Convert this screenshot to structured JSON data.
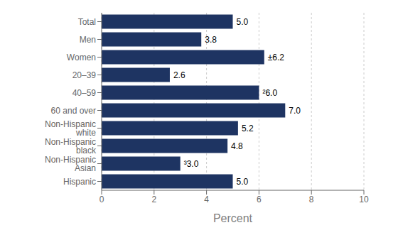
{
  "chart_data": {
    "type": "bar",
    "orientation": "horizontal",
    "categories": [
      "Total",
      "Men",
      "Women",
      "20–39",
      "40–59",
      "60 and over",
      "Non-Hispanic white",
      "Non-Hispanic black",
      "Non-Hispanic Asian",
      "Hispanic"
    ],
    "values": [
      5.0,
      3.8,
      6.2,
      2.6,
      6.0,
      7.0,
      5.2,
      4.8,
      3.0,
      5.0
    ],
    "value_labels": [
      "5.0",
      "3.8",
      "±6.2",
      "2.6",
      "²6.0",
      "7.0",
      "5.2",
      "4.8",
      "³3.0",
      "5.0"
    ],
    "color": "#1e3462",
    "xlim": [
      0,
      10
    ],
    "xticks": [
      0,
      2,
      4,
      6,
      8,
      10
    ],
    "xlabel": "Percent",
    "grid": true,
    "data_labels": true
  }
}
